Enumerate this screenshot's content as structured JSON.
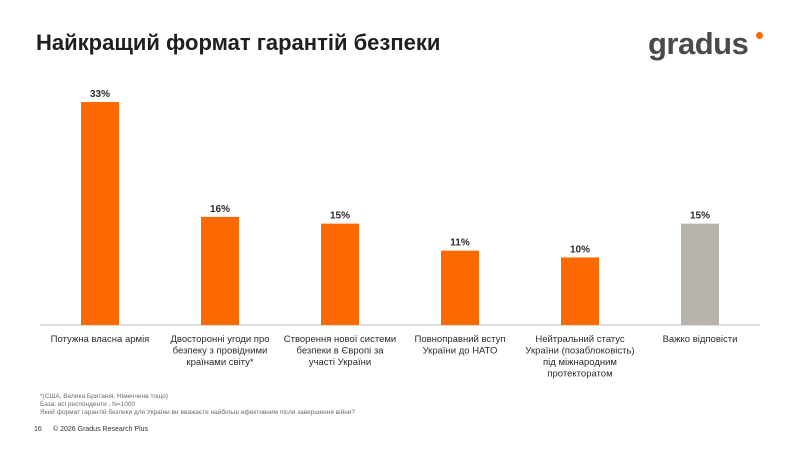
{
  "header": {
    "title": "Найкращий формат гарантій безпеки",
    "logo_text": "gradus"
  },
  "colors": {
    "bar": "#ff6a00",
    "bar_dont_know": "#b8b3ac",
    "logo_dot": "#ff6a00",
    "axis": "#bdbdbd",
    "label": "#2a2a2a"
  },
  "chart_data": {
    "type": "bar",
    "categories": [
      [
        "Потужна власна армія"
      ],
      [
        "Двосторонні угоди про",
        "безпеку з провідними",
        "країнами світу*"
      ],
      [
        "Створення нової системи",
        "безпеки в Європі за",
        "участі України"
      ],
      [
        "Повноправний вступ",
        "України до НАТО"
      ],
      [
        "Нейтральний статус",
        "України (позаблоковість)",
        "під міжнародним",
        "протекторатом"
      ],
      [
        "Важко відповісти"
      ]
    ],
    "values": [
      33,
      16,
      15,
      11,
      10,
      15
    ],
    "value_labels": [
      "33%",
      "16%",
      "15%",
      "11%",
      "10%",
      "15%"
    ],
    "highlight_last_gray": true,
    "ylim": [
      0,
      33
    ],
    "grid": false
  },
  "footer": {
    "note1": "*(США, Велика Британія, Німеччина тощо)",
    "note2": "База: всі респонденти , N=1000",
    "note3": "Який формат гарантій безпеки для України ви вважаєте найбільш ефективним після завершення війни?",
    "page_number": "16",
    "copyright": "© 2026 Gradus Research Plus"
  }
}
